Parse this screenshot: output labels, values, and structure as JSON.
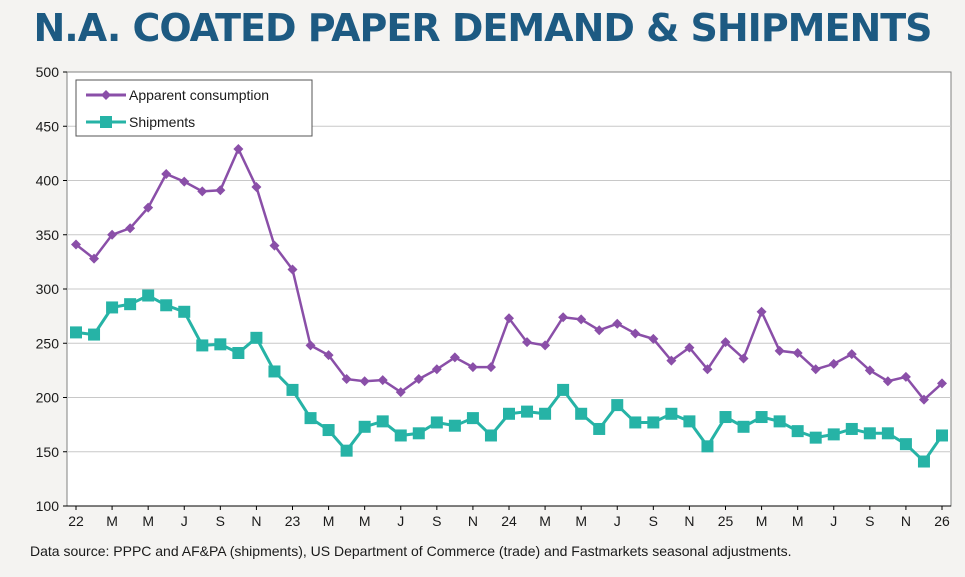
{
  "title": "N.A. COATED PAPER DEMAND & SHIPMENTS",
  "source": "Data source: PPPC and AF&PA (shipments), US Department of Commerce (trade) and Fastmarkets seasonal adjustments.",
  "colors": {
    "consumption": "#8a4fa8",
    "shipments": "#26b3a6",
    "grid": "#c8c8c8",
    "axis": "#000000"
  },
  "chart_data": {
    "type": "line",
    "ylim": [
      100,
      500
    ],
    "yticks": [
      100,
      150,
      200,
      250,
      300,
      350,
      400,
      450,
      500
    ],
    "grid": true,
    "legend_placement": "top-left",
    "x_tick_labels": [
      {
        "index": 0,
        "label": "22"
      },
      {
        "index": 2,
        "label": "M"
      },
      {
        "index": 4,
        "label": "M"
      },
      {
        "index": 6,
        "label": "J"
      },
      {
        "index": 8,
        "label": "S"
      },
      {
        "index": 10,
        "label": "N"
      },
      {
        "index": 12,
        "label": "23"
      },
      {
        "index": 14,
        "label": "M"
      },
      {
        "index": 16,
        "label": "M"
      },
      {
        "index": 18,
        "label": "J"
      },
      {
        "index": 20,
        "label": "S"
      },
      {
        "index": 22,
        "label": "N"
      },
      {
        "index": 24,
        "label": "24"
      },
      {
        "index": 26,
        "label": "M"
      },
      {
        "index": 28,
        "label": "M"
      },
      {
        "index": 30,
        "label": "J"
      },
      {
        "index": 32,
        "label": "S"
      },
      {
        "index": 34,
        "label": "N"
      },
      {
        "index": 36,
        "label": "25"
      },
      {
        "index": 38,
        "label": "M"
      },
      {
        "index": 40,
        "label": "M"
      },
      {
        "index": 42,
        "label": "J"
      },
      {
        "index": 44,
        "label": "S"
      },
      {
        "index": 46,
        "label": "N"
      },
      {
        "index": 48,
        "label": "26"
      }
    ],
    "series": [
      {
        "name": "Apparent consumption",
        "marker": "diamond",
        "values": [
          341,
          328,
          350,
          356,
          375,
          406,
          399,
          390,
          391,
          429,
          394,
          340,
          318,
          248,
          239,
          217,
          215,
          216,
          205,
          217,
          226,
          237,
          228,
          228,
          273,
          251,
          248,
          274,
          272,
          262,
          268,
          259,
          254,
          234,
          246,
          226,
          251,
          236,
          279,
          243,
          241,
          226,
          231,
          240,
          225,
          215,
          219,
          198,
          213
        ]
      },
      {
        "name": "Shipments",
        "marker": "square",
        "values": [
          260,
          258,
          283,
          286,
          294,
          285,
          279,
          248,
          249,
          241,
          255,
          224,
          207,
          181,
          170,
          151,
          173,
          178,
          165,
          167,
          177,
          174,
          181,
          165,
          185,
          187,
          185,
          207,
          185,
          171,
          193,
          177,
          177,
          185,
          178,
          155,
          182,
          173,
          182,
          178,
          169,
          163,
          166,
          171,
          167,
          167,
          157,
          141,
          165
        ]
      }
    ]
  }
}
